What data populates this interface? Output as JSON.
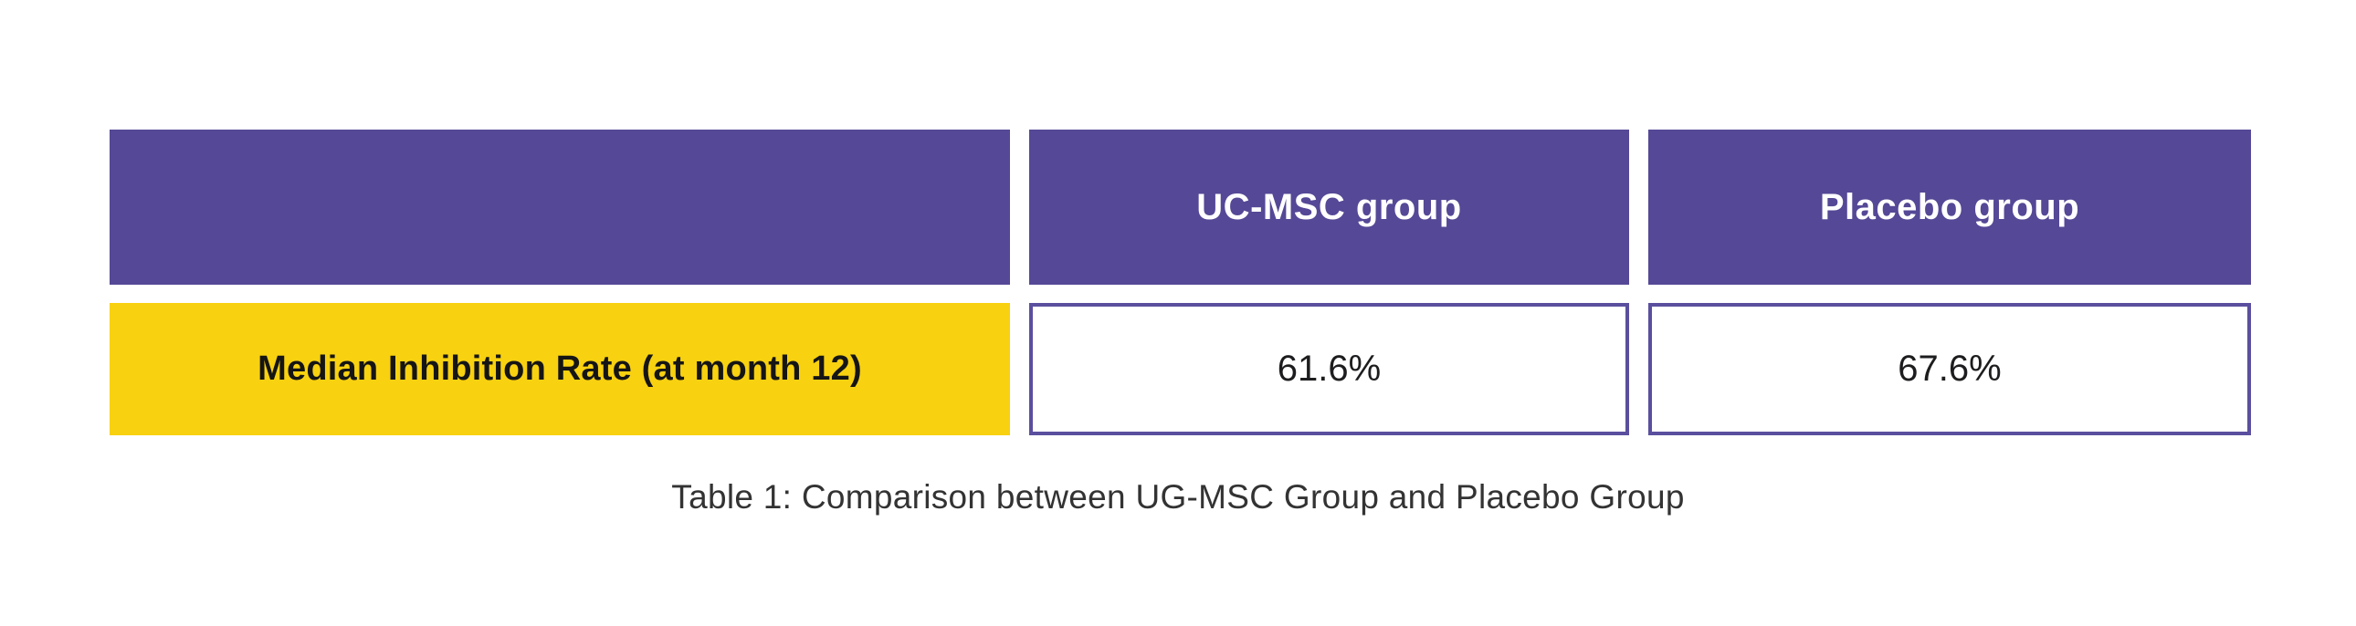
{
  "chart_data": {
    "type": "table",
    "title": "Table 1: Comparison between UG-MSC Group and Placebo Group",
    "columns": [
      "",
      "UC-MSC group",
      "Placebo group"
    ],
    "rows": [
      [
        "Median Inhibition Rate (at month 12)",
        "61.6%",
        "67.6%"
      ]
    ],
    "numeric_values": {
      "metric": "Median Inhibition Rate (at month 12)",
      "uc_msc_percent": 61.6,
      "placebo_percent": 67.6,
      "unit": "%"
    },
    "layout_hints": {
      "header_fill": "purple",
      "label_fill": "yellow",
      "value_cells": "white with purple border",
      "caption_position": "bottom-center"
    }
  },
  "colors": {
    "header_purple": "#554896",
    "cell_border_purple": "#5A4F9E",
    "label_yellow": "#F8D110",
    "header_text": "#FFFFFF",
    "body_text": "#1D1D1F",
    "caption_text": "#333333",
    "background": "#FFFFFF"
  }
}
